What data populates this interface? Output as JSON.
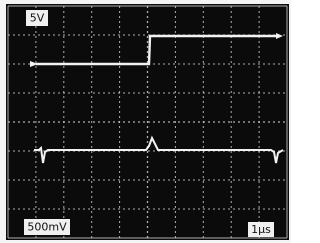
{
  "labels": {
    "channel_1": "5V",
    "channel_2": "500mV",
    "timebase": "1µs"
  }
}
